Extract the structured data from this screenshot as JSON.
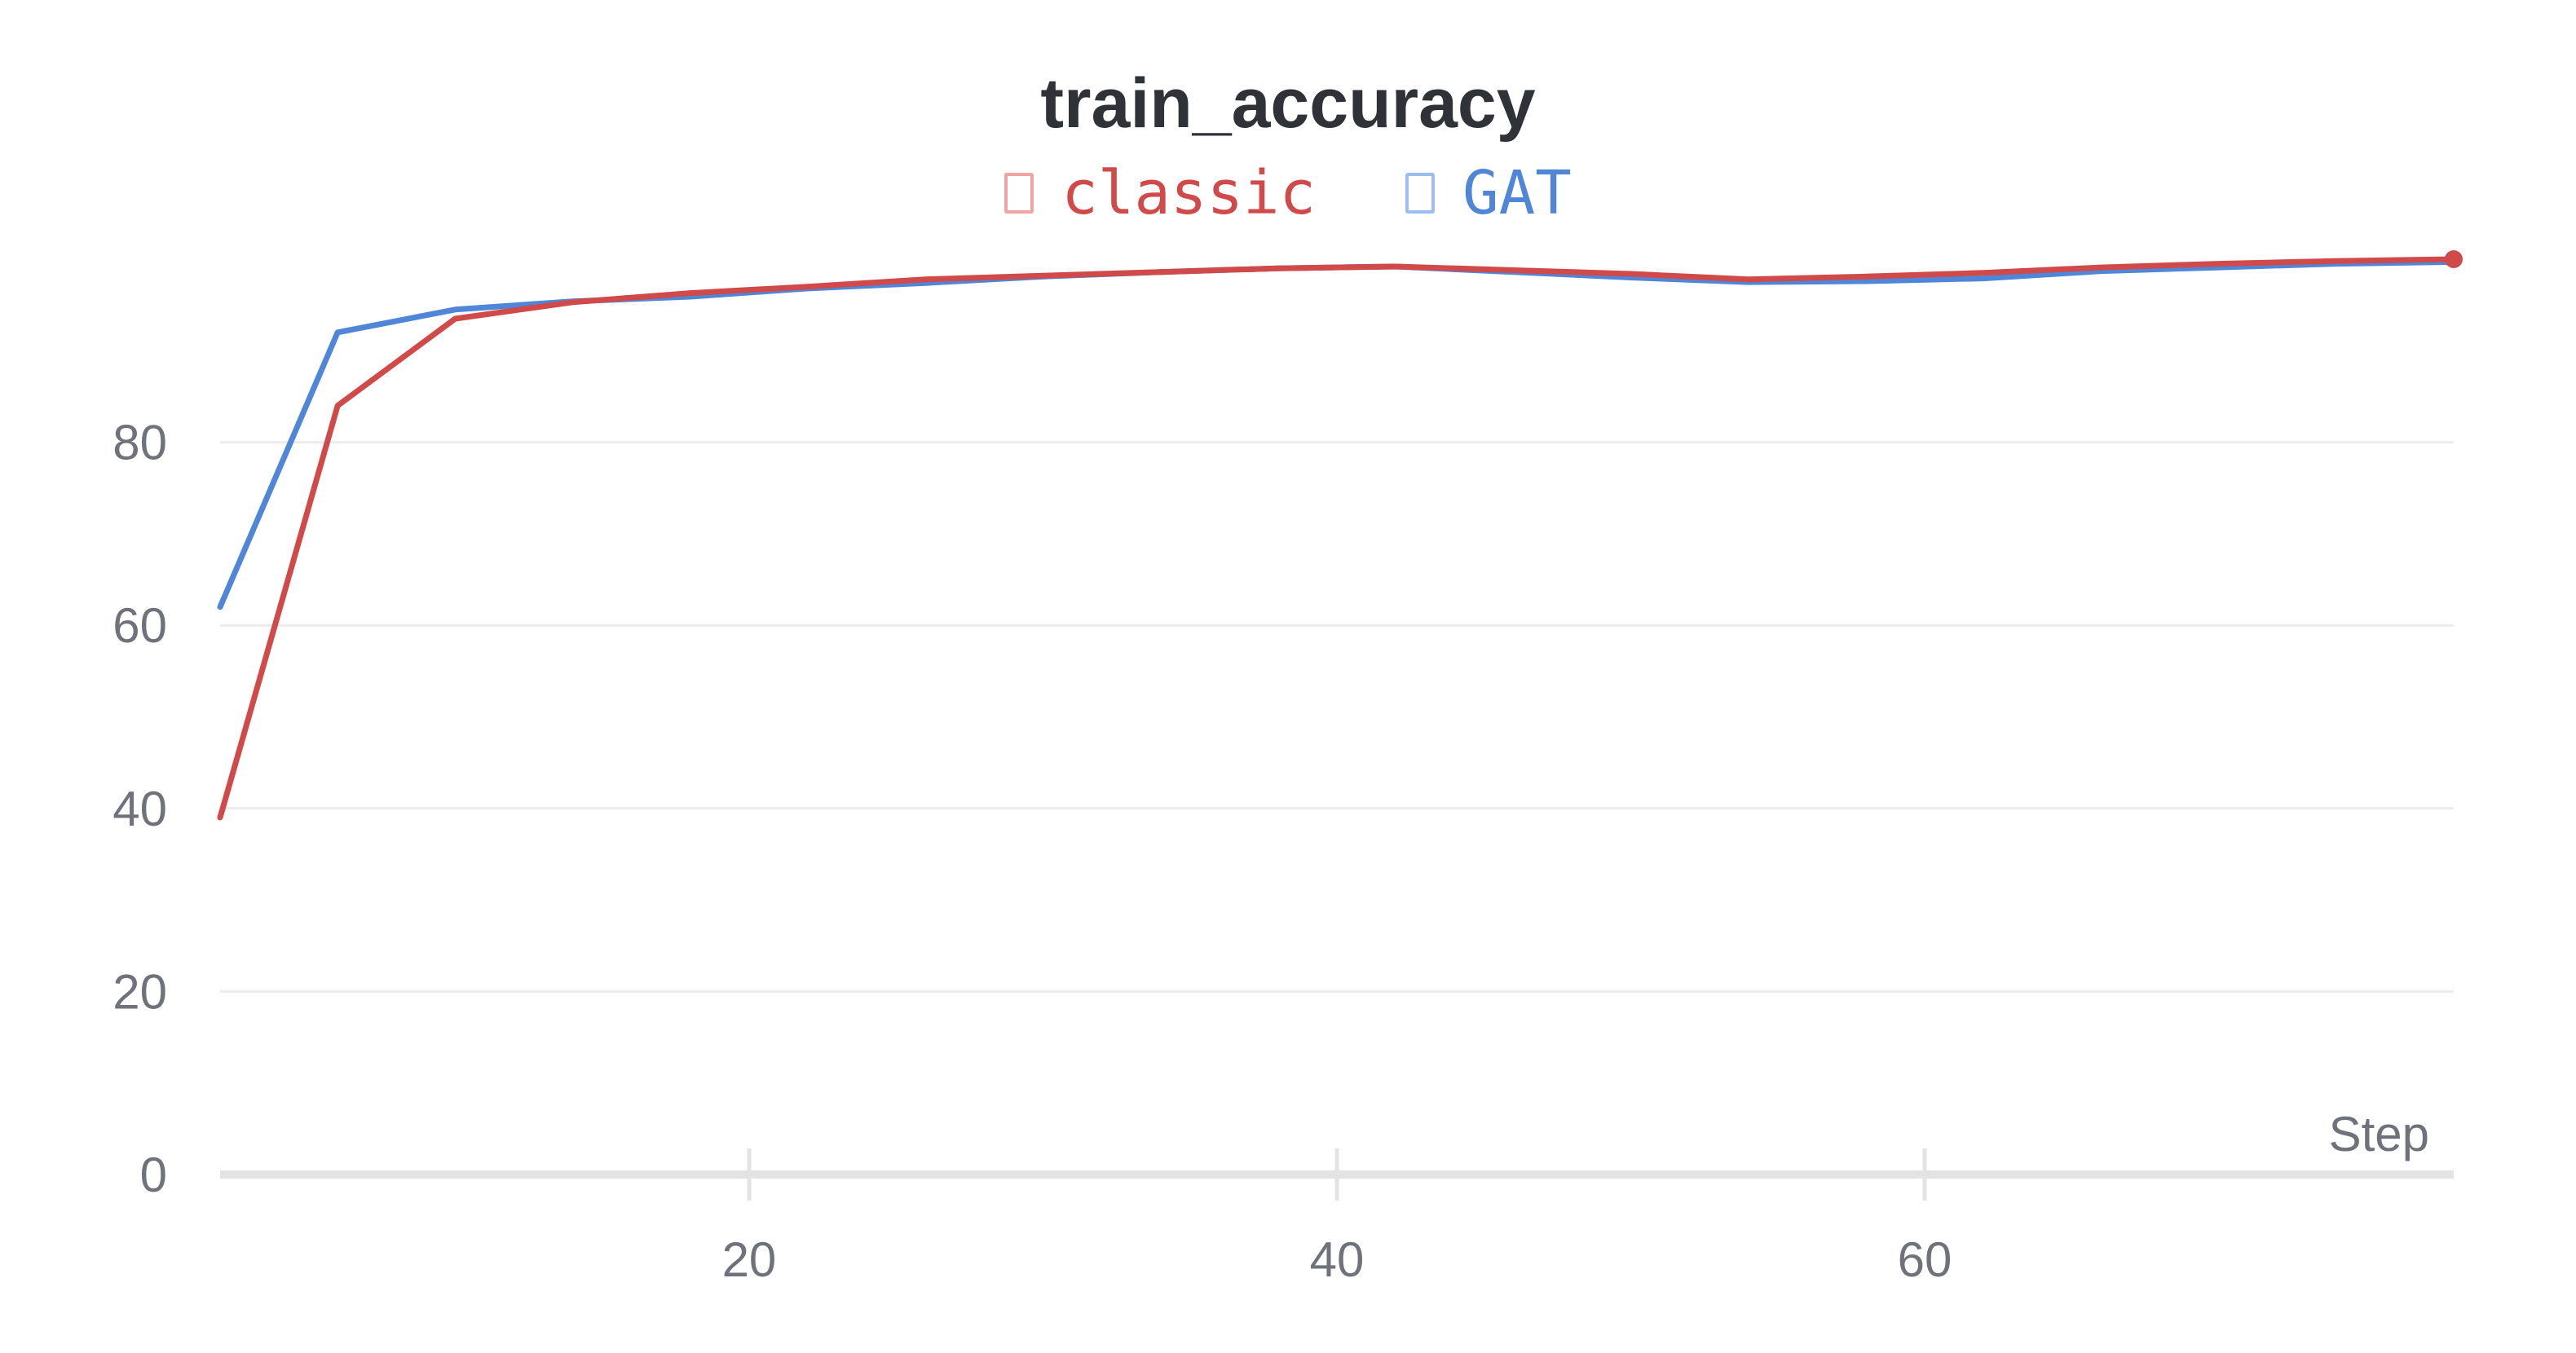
{
  "chart_data": {
    "type": "line",
    "title": "train_accuracy",
    "xlabel": "Step",
    "ylabel": "",
    "xlim": [
      2,
      78
    ],
    "ylim": [
      0,
      100
    ],
    "x_ticks": [
      20,
      40,
      60
    ],
    "y_ticks": [
      0,
      20,
      40,
      60,
      80
    ],
    "grid": true,
    "legend_position": "top-center",
    "series": [
      {
        "name": "classic",
        "color": "#d04a4a",
        "x": [
          2,
          6,
          10,
          14,
          18,
          22,
          26,
          30,
          34,
          38,
          42,
          46,
          50,
          54,
          58,
          62,
          66,
          70,
          74,
          78
        ],
        "y": [
          39,
          84,
          93.5,
          95.3,
          96.3,
          97.0,
          97.8,
          98.2,
          98.6,
          99.0,
          99.2,
          98.8,
          98.4,
          97.8,
          98.1,
          98.5,
          99.1,
          99.5,
          99.8,
          100.0
        ]
      },
      {
        "name": "GAT",
        "color": "#4f86d8",
        "x": [
          2,
          6,
          10,
          14,
          18,
          22,
          26,
          30,
          34,
          38,
          42,
          46,
          50,
          54,
          58,
          62,
          66,
          70,
          74,
          78
        ],
        "y": [
          62,
          92,
          94.5,
          95.4,
          95.9,
          96.8,
          97.4,
          98.1,
          98.6,
          99.0,
          99.2,
          98.6,
          98.0,
          97.5,
          97.6,
          97.9,
          98.7,
          99.1,
          99.5,
          99.7
        ]
      }
    ]
  }
}
